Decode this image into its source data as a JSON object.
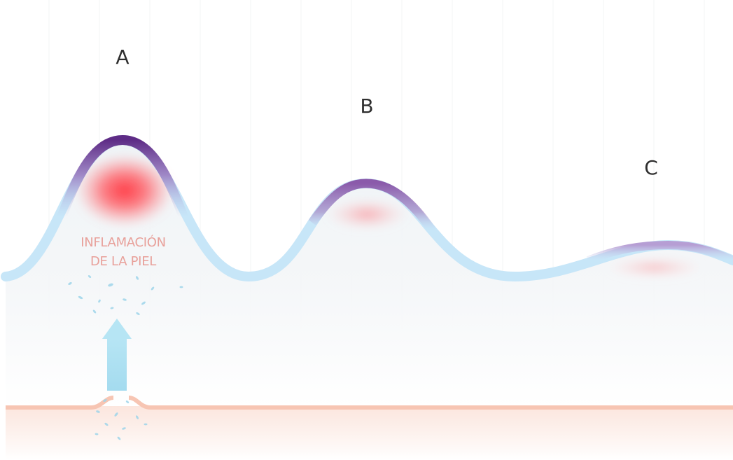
{
  "labels": {
    "peak_a": "A",
    "peak_b": "B",
    "peak_c": "C"
  },
  "annotation": {
    "line1": "INFLAMACIÓN",
    "line2": "DE LA PIEL"
  },
  "colors": {
    "wave_base": "#c7e6f8",
    "wave_purple": "#6a3490",
    "inflammation": "#ff3c46",
    "annotation_text": "#e8a09a",
    "skin_line": "#f7c5b3",
    "arrow": "#a9dff0",
    "particles": "#9fd5ea"
  }
}
